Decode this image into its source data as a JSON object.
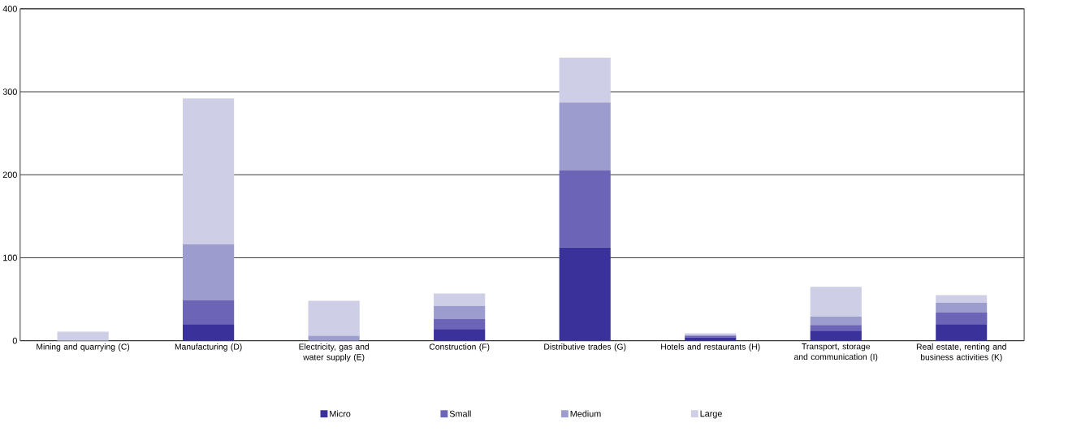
{
  "chart_data": {
    "type": "bar",
    "stacked": true,
    "categories": [
      "Mining and quarrying (C)",
      "Manufacturing (D)",
      "Electricity, gas and water supply (E)",
      "Construction (F)",
      "Distributive trades (G)",
      "Hotels and restaurants (H)",
      "Transport, storage and communication (I)",
      "Real estate, renting and business activities (K)"
    ],
    "series": [
      {
        "name": "Micro",
        "color": "#3a329a",
        "values": [
          0,
          20,
          0,
          14,
          113,
          4,
          12,
          20
        ]
      },
      {
        "name": "Small",
        "color": "#6c64b6",
        "values": [
          0,
          29,
          0,
          12,
          92,
          2,
          7,
          14
        ]
      },
      {
        "name": "Medium",
        "color": "#9d9ccf",
        "values": [
          0,
          67,
          6,
          16,
          82,
          1,
          10,
          12
        ]
      },
      {
        "name": "Large",
        "color": "#cecee6",
        "values": [
          11,
          176,
          42,
          15,
          54,
          2,
          36,
          9
        ]
      }
    ],
    "ylim": [
      0,
      400
    ],
    "yticks": [
      0,
      100,
      200,
      300,
      400
    ],
    "grid": "y",
    "legend": "bottom"
  }
}
